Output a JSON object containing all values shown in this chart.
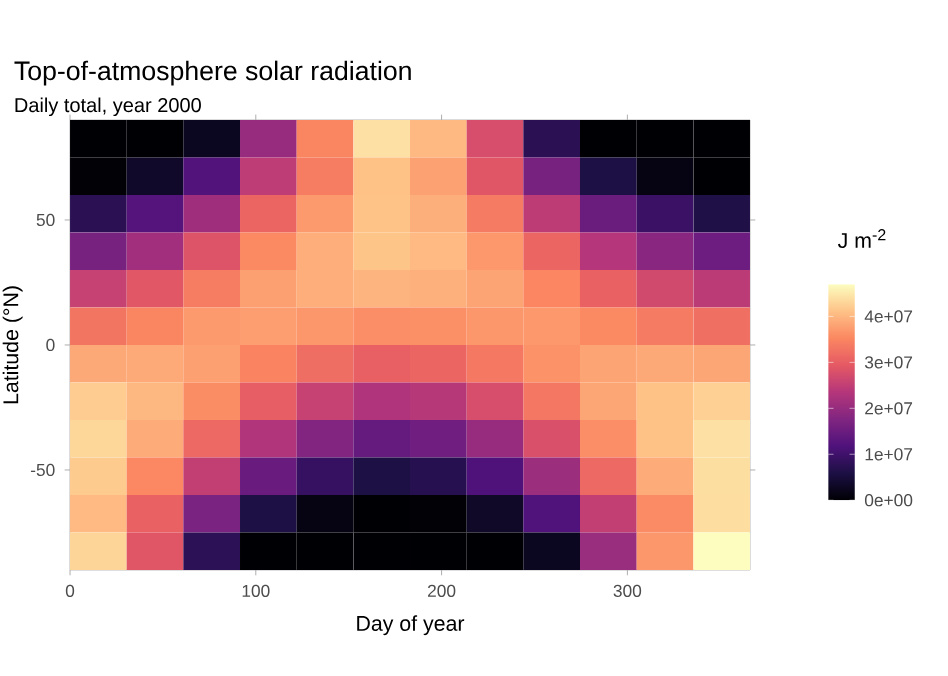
{
  "chart_data": {
    "type": "heatmap",
    "title": "Top-of-atmosphere solar radiation",
    "subtitle": "Daily total, year 2000",
    "xlabel": "Day of year",
    "ylabel": "Latitude (°N)",
    "clabel": "J m$^{-2}$",
    "x": [
      15.25,
      45.75,
      76.25,
      106.75,
      137.25,
      167.75,
      198.25,
      228.75,
      259.25,
      289.75,
      320.25,
      350.75
    ],
    "y": [
      82.5,
      67.5,
      52.5,
      37.5,
      22.5,
      7.5,
      -7.5,
      -22.5,
      -37.5,
      -52.5,
      -67.5,
      -82.5
    ],
    "cells": [
      [
        0,
        0,
        2600000,
        20100000,
        35100000,
        44100000,
        40300000,
        27500000,
        7600000,
        0,
        0,
        0
      ],
      [
        200000,
        3400000,
        12100000,
        24700000,
        34000000,
        41100000,
        37900000,
        28900000,
        16600000,
        6000000,
        1300000,
        0
      ],
      [
        7600000,
        12300000,
        21000000,
        30900000,
        37200000,
        41200000,
        39300000,
        33700000,
        24600000,
        15100000,
        9500000,
        6300000
      ],
      [
        16600000,
        21200000,
        28400000,
        35500000,
        39200000,
        41400000,
        40400000,
        37000000,
        30900000,
        23500000,
        18500000,
        15300000
      ],
      [
        25500000,
        29000000,
        33900000,
        37800000,
        39200000,
        39800000,
        39400000,
        38200000,
        35200000,
        30400000,
        26800000,
        24300000
      ],
      [
        33000000,
        35000000,
        37100000,
        37600000,
        36800000,
        36000000,
        36200000,
        36900000,
        37000000,
        35500000,
        33700000,
        32200000
      ],
      [
        38600000,
        38800000,
        37800000,
        34900000,
        32100000,
        30200000,
        30900000,
        33300000,
        36400000,
        38200000,
        38600000,
        38400000
      ],
      [
        42100000,
        40100000,
        35900000,
        30000000,
        25600000,
        22800000,
        23800000,
        27600000,
        33200000,
        38400000,
        41100000,
        42500000
      ],
      [
        43100000,
        38900000,
        31500000,
        23100000,
        17600000,
        14300000,
        15600000,
        20100000,
        27800000,
        36000000,
        41100000,
        44200000
      ],
      [
        42000000,
        35400000,
        25100000,
        14800000,
        9000000,
        5900000,
        7100000,
        11700000,
        20600000,
        31400000,
        38900000,
        43900000
      ],
      [
        40400000,
        30400000,
        16900000,
        5900000,
        1300000,
        0,
        200000,
        3300000,
        11900000,
        25100000,
        35700000,
        43800000
      ],
      [
        43000000,
        28900000,
        7800000,
        0,
        0,
        0,
        0,
        0,
        2600000,
        20400000,
        36800000,
        47000000
      ]
    ],
    "xlim": [
      0,
      366
    ],
    "ylim": [
      -90,
      90
    ],
    "xticks": [
      0,
      100,
      200,
      300
    ],
    "yticks": [
      -50,
      0,
      50
    ],
    "clim": [
      0,
      47000000
    ],
    "cticks": [
      {
        "value": 0,
        "label": "0e+00"
      },
      {
        "value": 10000000,
        "label": "1e+07"
      },
      {
        "value": 20000000,
        "label": "2e+07"
      },
      {
        "value": 30000000,
        "label": "3e+07"
      },
      {
        "value": 40000000,
        "label": "4e+07"
      }
    ]
  }
}
